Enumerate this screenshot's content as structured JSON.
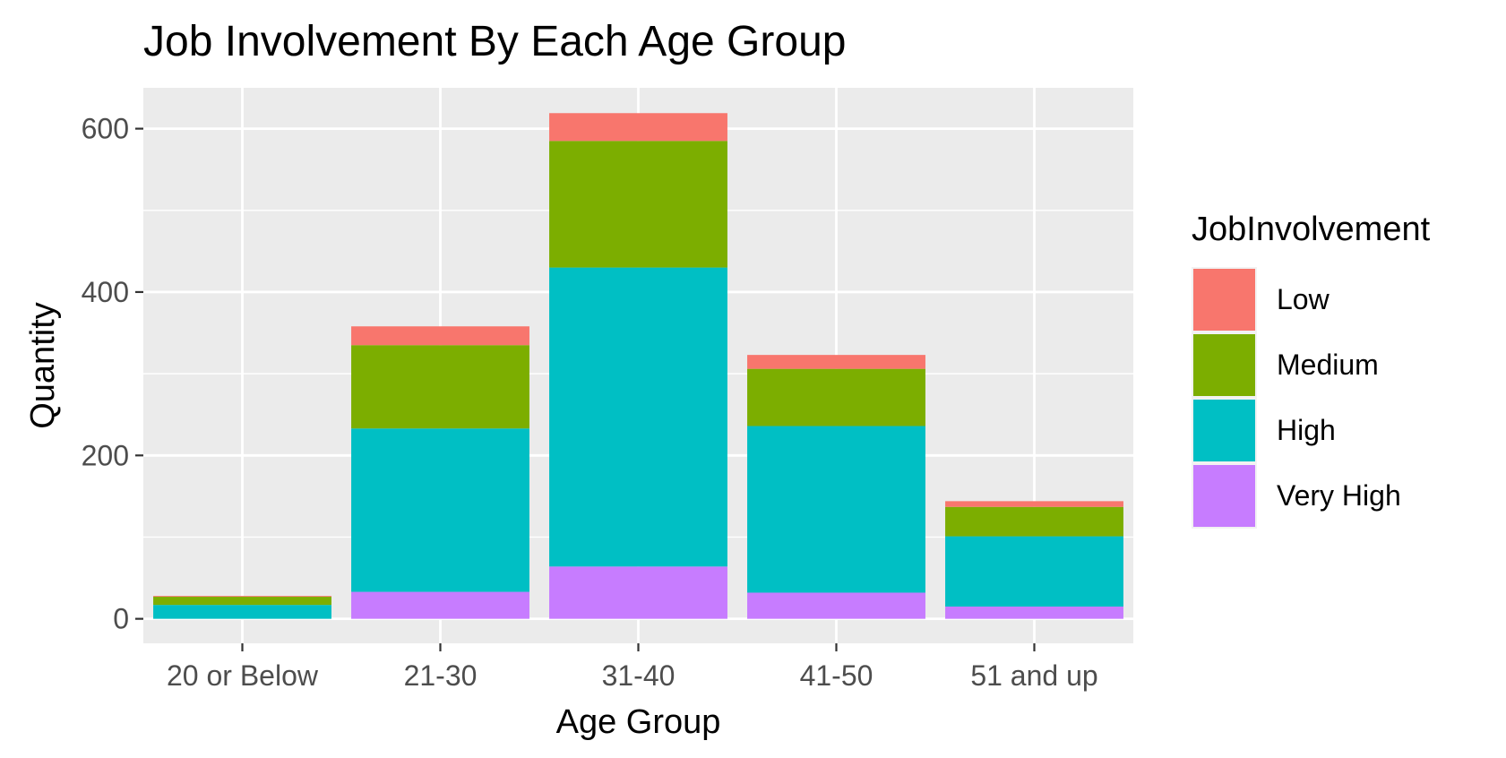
{
  "chart_data": {
    "type": "bar",
    "stacked": true,
    "title": "Job Involvement By Each Age Group",
    "xlabel": "Age Group",
    "ylabel": "Quantity",
    "categories": [
      "20 or Below",
      "21-30",
      "31-40",
      "41-50",
      "51 and up"
    ],
    "ylim": [
      -30,
      650
    ],
    "yticks": [
      0,
      200,
      400,
      600
    ],
    "grid": true,
    "legend": {
      "title": "JobInvolvement",
      "position": "right"
    },
    "series": [
      {
        "name": "Very High",
        "color": "#C77CFF",
        "values": [
          0,
          33,
          64,
          32,
          15
        ]
      },
      {
        "name": "High",
        "color": "#00BFC4",
        "values": [
          17,
          200,
          366,
          204,
          86
        ]
      },
      {
        "name": "Medium",
        "color": "#7CAE00",
        "values": [
          10,
          102,
          155,
          70,
          36
        ]
      },
      {
        "name": "Low",
        "color": "#F8766D",
        "values": [
          1,
          23,
          34,
          17,
          7
        ]
      }
    ],
    "legend_order": [
      "Low",
      "Medium",
      "High",
      "Very High"
    ]
  }
}
